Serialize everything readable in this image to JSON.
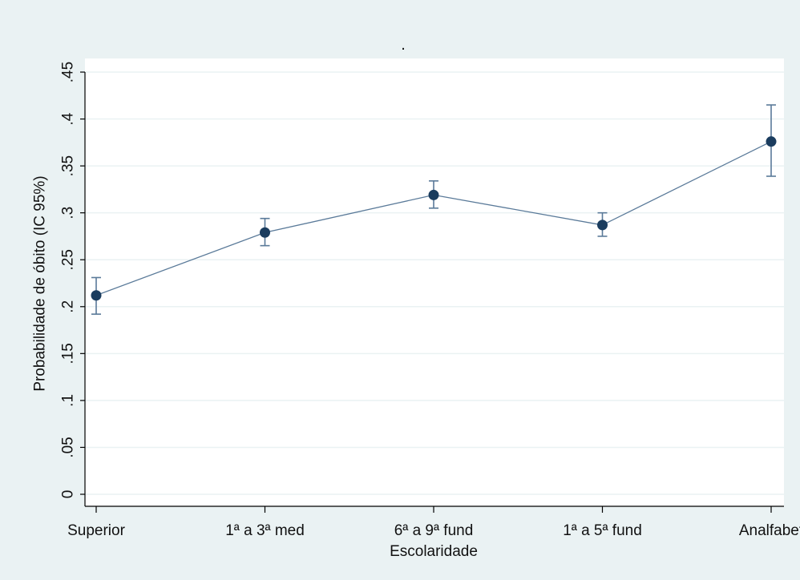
{
  "chart_data": {
    "type": "line",
    "title": ".",
    "xlabel": "Escolaridade",
    "ylabel": "Probabilidade de óbito (IC 95%)",
    "categories": [
      "Superior",
      "1ª a 3ª med",
      "6ª a 9ª fund",
      "1ª a 5ª fund",
      "Analfabet"
    ],
    "series": [
      {
        "values": [
          0.212,
          0.279,
          0.319,
          0.287,
          0.376
        ],
        "ci_lower": [
          0.192,
          0.265,
          0.305,
          0.275,
          0.339
        ],
        "ci_upper": [
          0.231,
          0.294,
          0.334,
          0.3,
          0.415
        ]
      }
    ],
    "ylim": [
      0,
      0.45
    ],
    "yticks": [
      0,
      0.05,
      0.1,
      0.15,
      0.2,
      0.25,
      0.3,
      0.35,
      0.4,
      0.45
    ],
    "ytick_labels": [
      "0",
      ".05",
      ".1",
      ".15",
      ".2",
      ".25",
      ".3",
      ".35",
      ".4",
      ".45"
    ],
    "grid": true,
    "legend": "none",
    "colors": {
      "outer_background": "#eaf2f3",
      "plot_background": "#ffffff",
      "line": "#5a7a99",
      "marker": "#1a3c5e",
      "error_bar": "#5a7a99",
      "grid": "#eaf2f3",
      "axis": "#000000"
    }
  }
}
